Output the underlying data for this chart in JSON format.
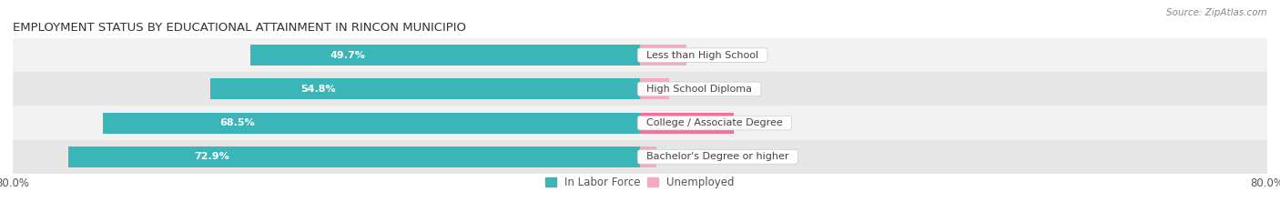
{
  "title": "EMPLOYMENT STATUS BY EDUCATIONAL ATTAINMENT IN RINCON MUNICIPIO",
  "source": "Source: ZipAtlas.com",
  "categories": [
    "Less than High School",
    "High School Diploma",
    "College / Associate Degree",
    "Bachelor's Degree or higher"
  ],
  "labor_force": [
    49.7,
    54.8,
    68.5,
    72.9
  ],
  "unemployed": [
    5.9,
    3.7,
    12.0,
    2.1
  ],
  "labor_force_color": "#3ab5b8",
  "unemployed_color_light": "#f7a8c4",
  "unemployed_color_dark": "#f06fa0",
  "row_bg_light": "#f2f2f2",
  "row_bg_dark": "#e6e6e6",
  "xlim_left": 0.0,
  "xlim_right": 100.0,
  "x_left_label": "80.0%",
  "x_right_label": "80.0%",
  "bar_height": 0.62,
  "title_fontsize": 9.5,
  "source_fontsize": 7.5,
  "legend_fontsize": 8.5,
  "tick_fontsize": 8.5,
  "value_fontsize": 8,
  "category_fontsize": 8
}
